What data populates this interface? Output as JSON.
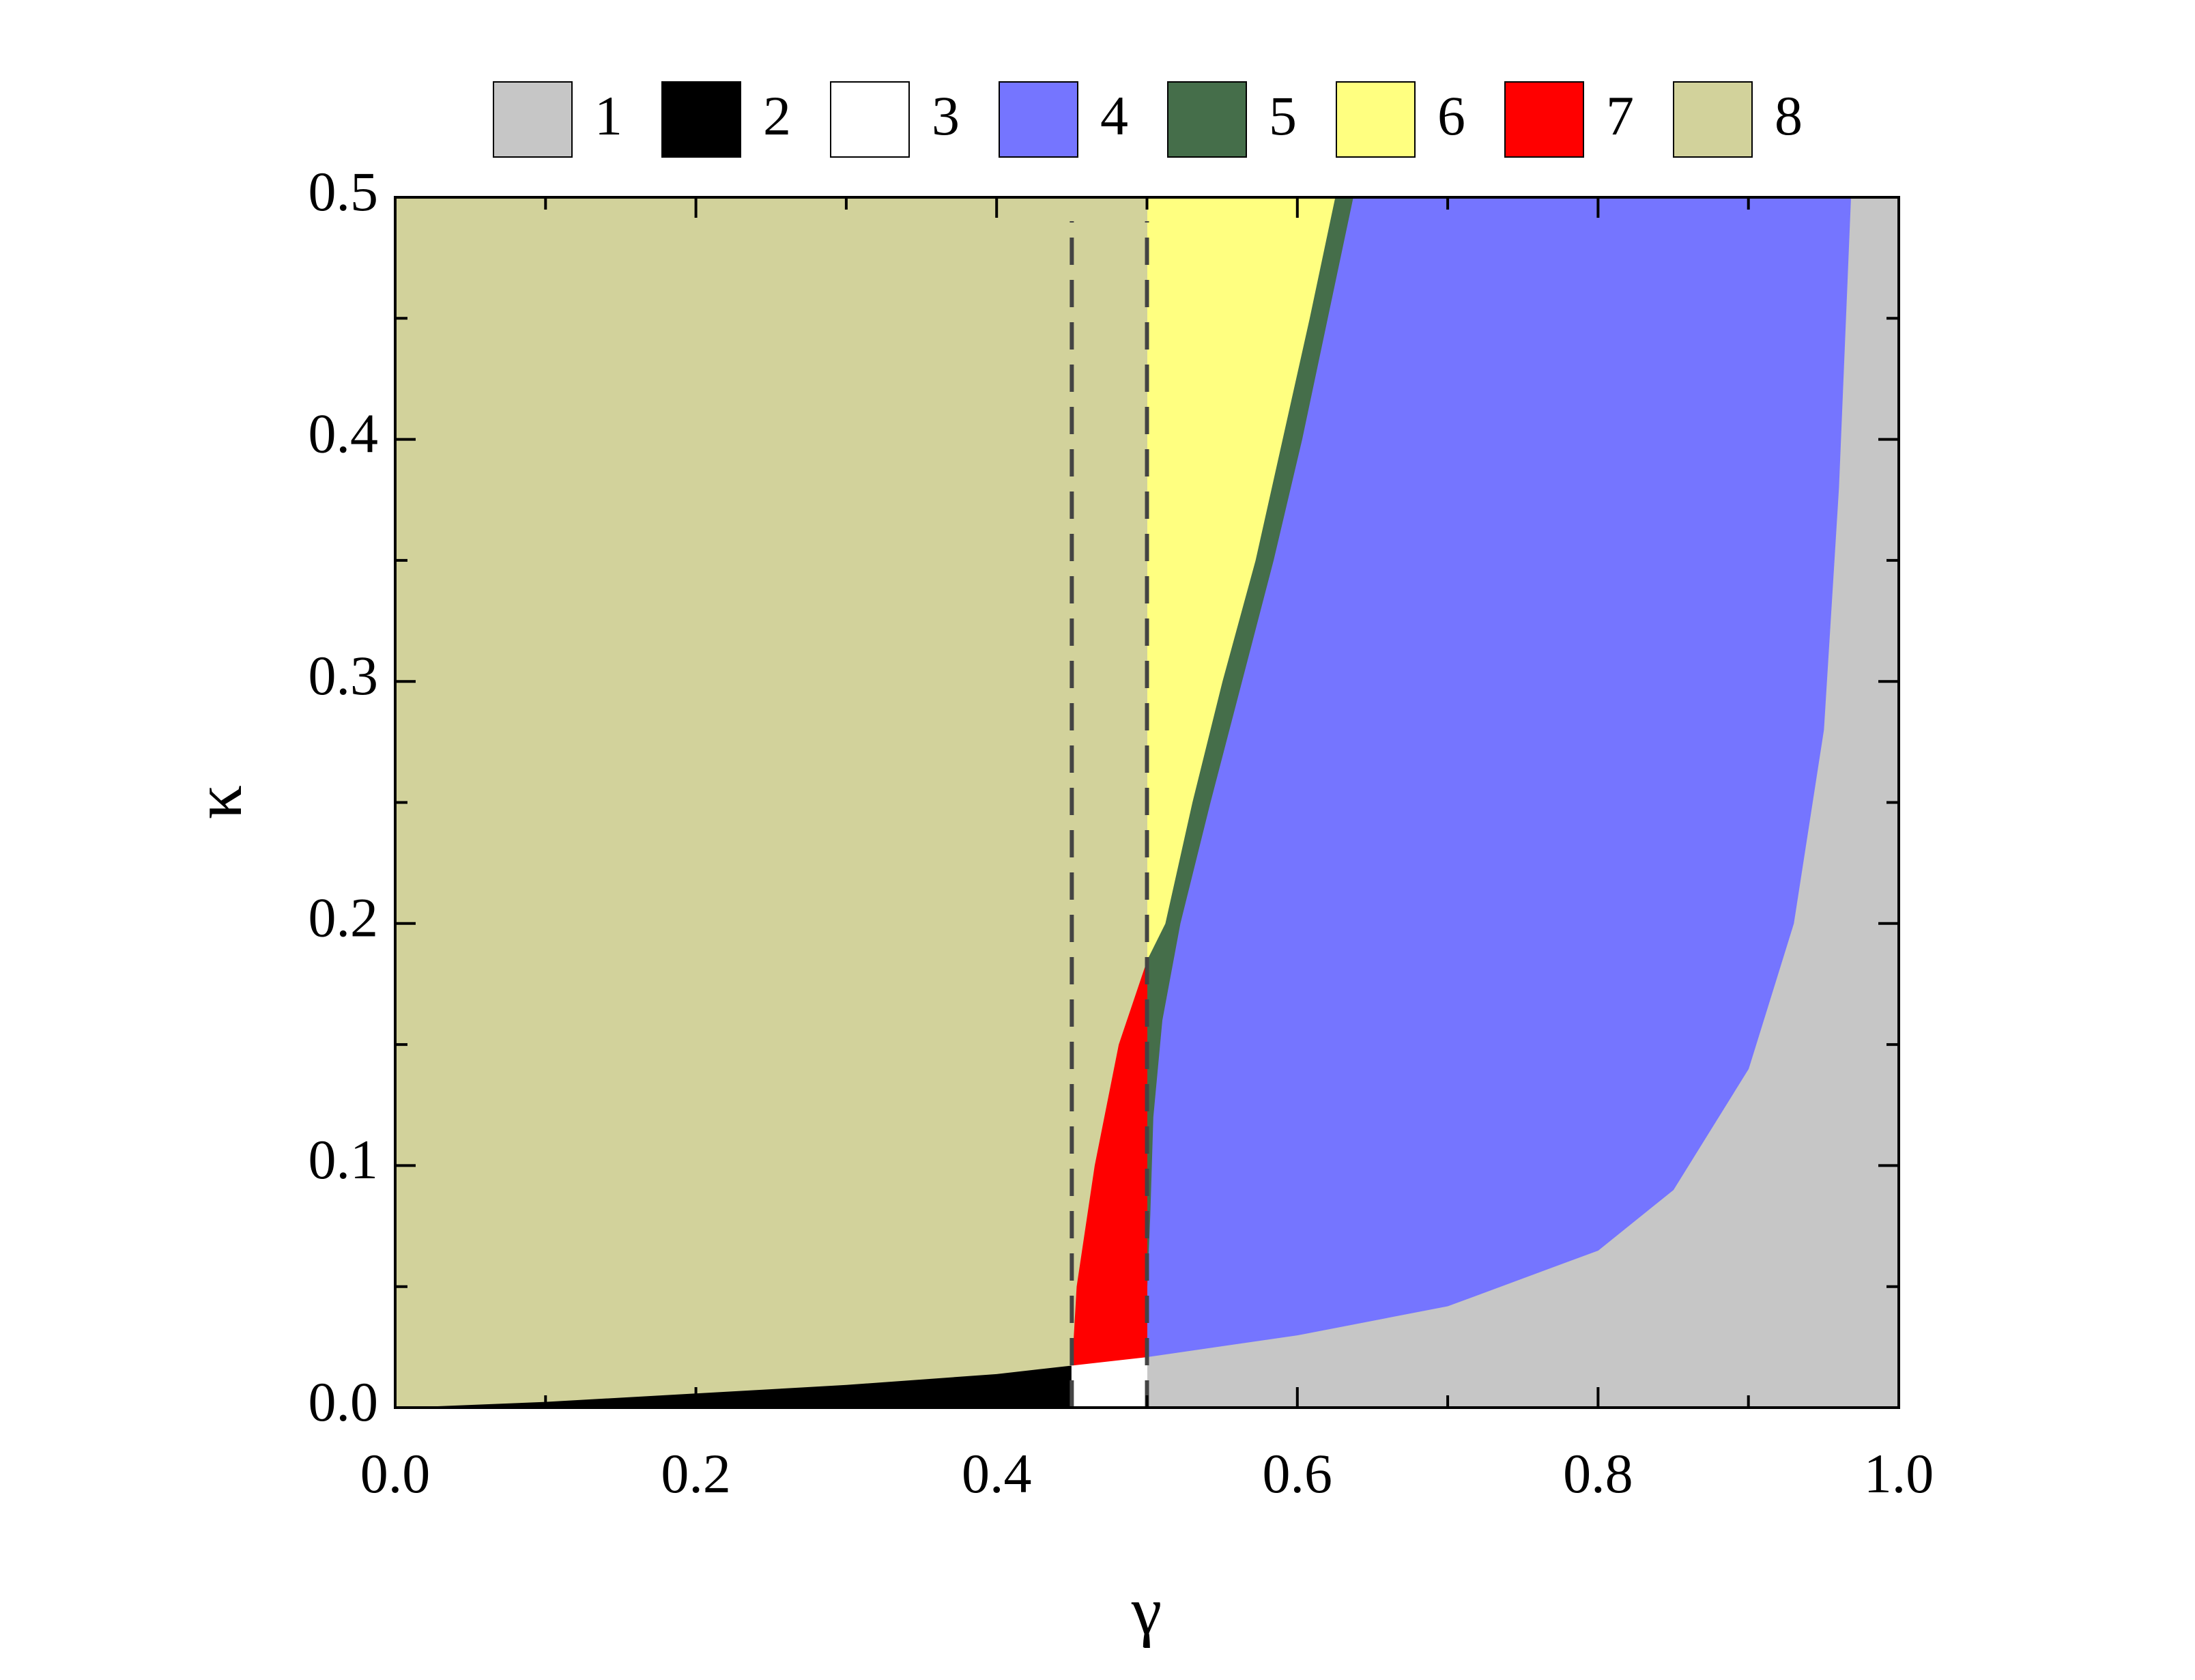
{
  "chart_data": {
    "type": "area",
    "x_label": "γ",
    "y_label": "κ",
    "xlim": [
      0,
      1
    ],
    "ylim": [
      0,
      0.5
    ],
    "xticks": [
      {
        "value": 0,
        "label": "0.0"
      },
      {
        "value": 0.2,
        "label": "0.2"
      },
      {
        "value": 0.4,
        "label": "0.4"
      },
      {
        "value": 0.6,
        "label": "0.6"
      },
      {
        "value": 0.8,
        "label": "0.8"
      },
      {
        "value": 1,
        "label": "1.0"
      }
    ],
    "yticks": [
      {
        "value": 0,
        "label": "0.0"
      },
      {
        "value": 0.1,
        "label": "0.1"
      },
      {
        "value": 0.2,
        "label": "0.2"
      },
      {
        "value": 0.3,
        "label": "0.3"
      },
      {
        "value": 0.4,
        "label": "0.4"
      },
      {
        "value": 0.5,
        "label": "0.5"
      }
    ],
    "xminorticks": [
      0.1,
      0.3,
      0.5,
      0.7,
      0.9
    ],
    "yminorticks": [
      0.05,
      0.15,
      0.25,
      0.35,
      0.45
    ],
    "dashed_vlines": [
      0.45,
      0.5
    ],
    "series": [
      {
        "name": "1",
        "color": "#c6c6c6",
        "x": [
          0.5,
          0.6,
          0.7,
          0.8,
          0.85,
          0.9,
          0.93,
          0.95,
          0.96,
          0.968,
          1,
          1,
          0.5
        ],
        "y": [
          0.021,
          0.03,
          0.042,
          0.065,
          0.09,
          0.14,
          0.2,
          0.28,
          0.38,
          0.5,
          0.5,
          0,
          0
        ]
      },
      {
        "name": "2",
        "color": "#000000",
        "x": [
          0,
          0.1,
          0.2,
          0.3,
          0.4,
          0.45,
          0.45
        ],
        "y": [
          0,
          0.0025,
          0.006,
          0.0095,
          0.014,
          0.0175,
          0
        ]
      },
      {
        "name": "3",
        "color": "#ffffff",
        "x": [
          0.45,
          0.45,
          0.5,
          0.5
        ],
        "y": [
          0,
          0.0175,
          0.021,
          0
        ]
      },
      {
        "name": "4",
        "color": "#7575ff",
        "x": [
          0.637,
          0.62,
          0.603,
          0.584,
          0.563,
          0.542,
          0.522,
          0.51,
          0.504,
          0.502,
          0.5,
          0.5,
          0.6,
          0.7,
          0.8,
          0.85,
          0.9,
          0.93,
          0.95,
          0.96,
          0.968
        ],
        "y": [
          0.5,
          0.45,
          0.4,
          0.35,
          0.3,
          0.25,
          0.2,
          0.16,
          0.12,
          0.08,
          0.05,
          0.021,
          0.03,
          0.042,
          0.065,
          0.09,
          0.14,
          0.2,
          0.28,
          0.38,
          0.5
        ]
      },
      {
        "name": "5",
        "color": "#456e4a",
        "x": [
          0.5,
          0.512,
          0.53,
          0.55,
          0.572,
          0.59,
          0.608,
          0.625,
          0.637,
          0.62,
          0.603,
          0.584,
          0.563,
          0.542,
          0.522,
          0.51,
          0.504,
          0.502,
          0.5
        ],
        "y": [
          0.185,
          0.2,
          0.25,
          0.3,
          0.35,
          0.4,
          0.45,
          0.5,
          0.5,
          0.45,
          0.4,
          0.35,
          0.3,
          0.25,
          0.2,
          0.16,
          0.12,
          0.08,
          0.05
        ]
      },
      {
        "name": "6",
        "color": "#ffff80",
        "x": [
          0.5,
          0.512,
          0.53,
          0.55,
          0.572,
          0.59,
          0.608,
          0.625,
          0.5
        ],
        "y": [
          0.185,
          0.2,
          0.25,
          0.3,
          0.35,
          0.4,
          0.45,
          0.5,
          0.5
        ]
      },
      {
        "name": "7",
        "color": "#ff0000",
        "x": [
          0.45,
          0.453,
          0.465,
          0.481,
          0.5,
          0.5
        ],
        "y": [
          0.0175,
          0.05,
          0.1,
          0.15,
          0.185,
          0.021
        ]
      },
      {
        "name": "8",
        "color": "#d2d29b",
        "x": [
          0,
          0.1,
          0.2,
          0.3,
          0.4,
          0.45,
          0.453,
          0.465,
          0.481,
          0.5,
          0.5,
          0
        ],
        "y": [
          0,
          0.0025,
          0.006,
          0.0095,
          0.014,
          0.0175,
          0.05,
          0.1,
          0.15,
          0.185,
          0.5,
          0.5
        ]
      }
    ]
  }
}
